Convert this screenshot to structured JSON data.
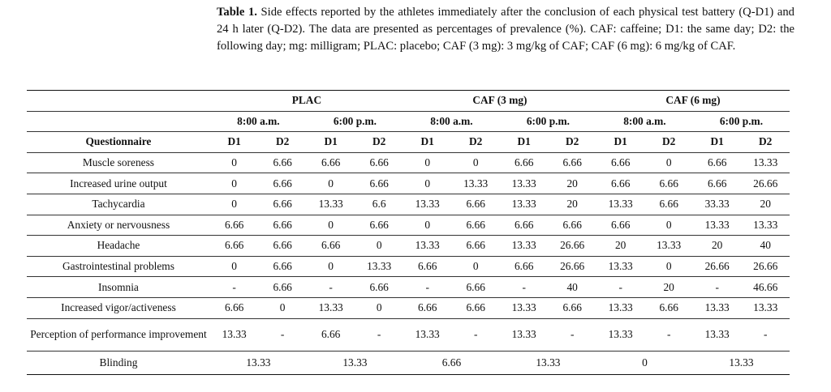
{
  "caption": {
    "label": "Table 1.",
    "text": " Side effects reported by the athletes immediately after the conclusion of each physical test battery (Q-D1) and 24 h later (Q-D2). The data are presented as percentages of prevalence (%). CAF: caffeine; D1: the same day; D2: the following day; mg: milligram; PLAC: placebo; CAF (3 mg): 3 mg/kg of CAF; CAF (6 mg): 6 mg/kg of CAF."
  },
  "table": {
    "groups": [
      "PLAC",
      "CAF (3 mg)",
      "CAF (6 mg)"
    ],
    "times": [
      "8:00 a.m.",
      "6:00 p.m.",
      "8:00 a.m.",
      "6:00 p.m.",
      "8:00 a.m.",
      "6:00 p.m."
    ],
    "first_col_header": "Questionnaire",
    "day_headers": [
      "D1",
      "D2",
      "D1",
      "D2",
      "D1",
      "D2",
      "D1",
      "D2",
      "D1",
      "D2",
      "D1",
      "D2"
    ],
    "rows": [
      {
        "label": "Muscle soreness",
        "values": [
          "0",
          "6.66",
          "6.66",
          "6.66",
          "0",
          "0",
          "6.66",
          "6.66",
          "6.66",
          "0",
          "6.66",
          "13.33"
        ]
      },
      {
        "label": "Increased urine output",
        "values": [
          "0",
          "6.66",
          "0",
          "6.66",
          "0",
          "13.33",
          "13.33",
          "20",
          "6.66",
          "6.66",
          "6.66",
          "26.66"
        ]
      },
      {
        "label": "Tachycardia",
        "values": [
          "0",
          "6.66",
          "13.33",
          "6.6",
          "13.33",
          "6.66",
          "13.33",
          "20",
          "13.33",
          "6.66",
          "33.33",
          "20"
        ]
      },
      {
        "label": "Anxiety or nervousness",
        "values": [
          "6.66",
          "6.66",
          "0",
          "6.66",
          "0",
          "6.66",
          "6.66",
          "6.66",
          "6.66",
          "0",
          "13.33",
          "13.33"
        ]
      },
      {
        "label": "Headache",
        "values": [
          "6.66",
          "6.66",
          "6.66",
          "0",
          "13.33",
          "6.66",
          "13.33",
          "26.66",
          "20",
          "13.33",
          "20",
          "40"
        ]
      },
      {
        "label": "Gastrointestinal problems",
        "values": [
          "0",
          "6.66",
          "0",
          "13.33",
          "6.66",
          "0",
          "6.66",
          "26.66",
          "13.33",
          "0",
          "26.66",
          "26.66"
        ]
      },
      {
        "label": "Insomnia",
        "values": [
          "-",
          "6.66",
          "-",
          "6.66",
          "-",
          "6.66",
          "-",
          "40",
          "-",
          "20",
          "-",
          "46.66"
        ]
      },
      {
        "label": "Increased vigor/activeness",
        "values": [
          "6.66",
          "0",
          "13.33",
          "0",
          "6.66",
          "6.66",
          "13.33",
          "6.66",
          "13.33",
          "6.66",
          "13.33",
          "13.33"
        ]
      },
      {
        "label": "Perception of performance improvement",
        "values": [
          "13.33",
          "-",
          "6.66",
          "-",
          "13.33",
          "-",
          "13.33",
          "-",
          "13.33",
          "-",
          "13.33",
          "-"
        ]
      }
    ],
    "blinding": {
      "label": "Blinding",
      "values": [
        "13.33",
        "13.33",
        "6.66",
        "13.33",
        "0",
        "13.33"
      ]
    }
  }
}
